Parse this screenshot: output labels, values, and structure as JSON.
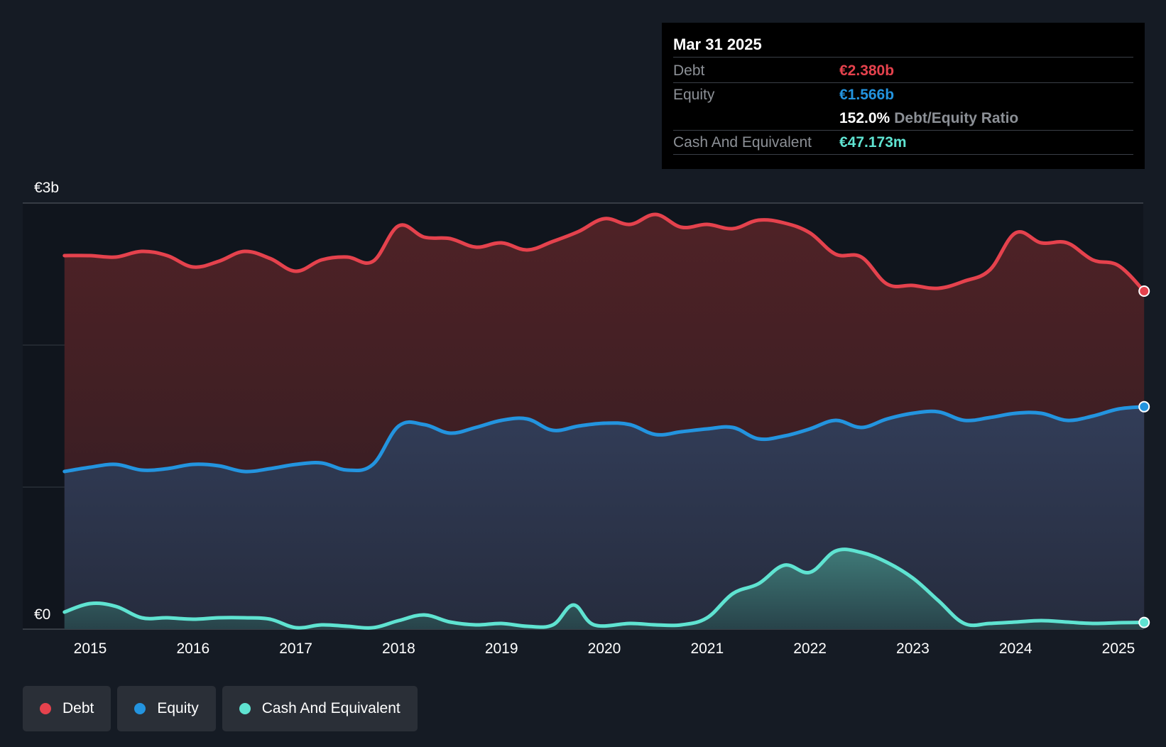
{
  "colors": {
    "background": "#151b24",
    "debt": "#e5424d",
    "equity": "#2394df",
    "cash": "#5fe3d1",
    "grid": "#3a4049"
  },
  "tooltip": {
    "date": "Mar 31 2025",
    "debt_label": "Debt",
    "debt_value": "€2.380b",
    "equity_label": "Equity",
    "equity_value": "€1.566b",
    "ratio_value": "152.0%",
    "ratio_label": "Debt/Equity Ratio",
    "cash_label": "Cash And Equivalent",
    "cash_value": "€47.173m"
  },
  "legend": [
    {
      "label": "Debt",
      "color": "#e5424d"
    },
    {
      "label": "Equity",
      "color": "#2394df"
    },
    {
      "label": "Cash And Equivalent",
      "color": "#5fe3d1"
    }
  ],
  "chart_data": {
    "type": "area",
    "title": "",
    "xlabel": "",
    "ylabel": "",
    "ylim": [
      0,
      3
    ],
    "y_unit": "€b",
    "y_tick_labels": [
      {
        "value": 3,
        "label": "€3b"
      },
      {
        "value": 0,
        "label": "€0"
      }
    ],
    "gridlines": [
      0,
      1,
      2,
      3
    ],
    "x_ticks": [
      {
        "value": 2015,
        "label": "2015"
      },
      {
        "value": 2016,
        "label": "2016"
      },
      {
        "value": 2017,
        "label": "2017"
      },
      {
        "value": 2018,
        "label": "2018"
      },
      {
        "value": 2019,
        "label": "2019"
      },
      {
        "value": 2020,
        "label": "2020"
      },
      {
        "value": 2021,
        "label": "2021"
      },
      {
        "value": 2022,
        "label": "2022"
      },
      {
        "value": 2023,
        "label": "2023"
      },
      {
        "value": 2024,
        "label": "2024"
      },
      {
        "value": 2025,
        "label": "2025"
      }
    ],
    "xlim": [
      2014.7,
      2025.3
    ],
    "series": [
      {
        "name": "Debt",
        "color": "#e5424d",
        "points": [
          [
            2014.75,
            2.63
          ],
          [
            2015.0,
            2.63
          ],
          [
            2015.25,
            2.62
          ],
          [
            2015.5,
            2.66
          ],
          [
            2015.75,
            2.63
          ],
          [
            2016.0,
            2.55
          ],
          [
            2016.25,
            2.59
          ],
          [
            2016.5,
            2.66
          ],
          [
            2016.75,
            2.61
          ],
          [
            2017.0,
            2.52
          ],
          [
            2017.25,
            2.6
          ],
          [
            2017.5,
            2.62
          ],
          [
            2017.75,
            2.59
          ],
          [
            2018.0,
            2.84
          ],
          [
            2018.25,
            2.76
          ],
          [
            2018.5,
            2.75
          ],
          [
            2018.75,
            2.69
          ],
          [
            2019.0,
            2.72
          ],
          [
            2019.25,
            2.67
          ],
          [
            2019.5,
            2.73
          ],
          [
            2019.75,
            2.8
          ],
          [
            2020.0,
            2.89
          ],
          [
            2020.25,
            2.85
          ],
          [
            2020.5,
            2.92
          ],
          [
            2020.75,
            2.83
          ],
          [
            2021.0,
            2.85
          ],
          [
            2021.25,
            2.82
          ],
          [
            2021.5,
            2.88
          ],
          [
            2021.75,
            2.86
          ],
          [
            2022.0,
            2.79
          ],
          [
            2022.25,
            2.64
          ],
          [
            2022.5,
            2.62
          ],
          [
            2022.75,
            2.43
          ],
          [
            2023.0,
            2.42
          ],
          [
            2023.25,
            2.4
          ],
          [
            2023.5,
            2.45
          ],
          [
            2023.75,
            2.53
          ],
          [
            2024.0,
            2.79
          ],
          [
            2024.25,
            2.72
          ],
          [
            2024.5,
            2.72
          ],
          [
            2024.75,
            2.6
          ],
          [
            2025.0,
            2.56
          ],
          [
            2025.25,
            2.38
          ]
        ]
      },
      {
        "name": "Equity",
        "color": "#2394df",
        "points": [
          [
            2014.75,
            1.11
          ],
          [
            2015.0,
            1.14
          ],
          [
            2015.25,
            1.16
          ],
          [
            2015.5,
            1.12
          ],
          [
            2015.75,
            1.13
          ],
          [
            2016.0,
            1.16
          ],
          [
            2016.25,
            1.15
          ],
          [
            2016.5,
            1.11
          ],
          [
            2016.75,
            1.13
          ],
          [
            2017.0,
            1.16
          ],
          [
            2017.25,
            1.17
          ],
          [
            2017.5,
            1.12
          ],
          [
            2017.75,
            1.16
          ],
          [
            2018.0,
            1.43
          ],
          [
            2018.25,
            1.44
          ],
          [
            2018.5,
            1.38
          ],
          [
            2018.75,
            1.42
          ],
          [
            2019.0,
            1.47
          ],
          [
            2019.25,
            1.48
          ],
          [
            2019.5,
            1.4
          ],
          [
            2019.75,
            1.43
          ],
          [
            2020.0,
            1.45
          ],
          [
            2020.25,
            1.44
          ],
          [
            2020.5,
            1.37
          ],
          [
            2020.75,
            1.39
          ],
          [
            2021.0,
            1.41
          ],
          [
            2021.25,
            1.42
          ],
          [
            2021.5,
            1.34
          ],
          [
            2021.75,
            1.36
          ],
          [
            2022.0,
            1.41
          ],
          [
            2022.25,
            1.47
          ],
          [
            2022.5,
            1.42
          ],
          [
            2022.75,
            1.48
          ],
          [
            2023.0,
            1.52
          ],
          [
            2023.25,
            1.53
          ],
          [
            2023.5,
            1.47
          ],
          [
            2023.75,
            1.49
          ],
          [
            2024.0,
            1.52
          ],
          [
            2024.25,
            1.52
          ],
          [
            2024.5,
            1.47
          ],
          [
            2024.75,
            1.5
          ],
          [
            2025.0,
            1.55
          ],
          [
            2025.25,
            1.566
          ]
        ]
      },
      {
        "name": "Cash And Equivalent",
        "color": "#5fe3d1",
        "points": [
          [
            2014.75,
            0.12
          ],
          [
            2015.0,
            0.18
          ],
          [
            2015.25,
            0.16
          ],
          [
            2015.5,
            0.08
          ],
          [
            2015.75,
            0.08
          ],
          [
            2016.0,
            0.07
          ],
          [
            2016.25,
            0.08
          ],
          [
            2016.5,
            0.08
          ],
          [
            2016.75,
            0.07
          ],
          [
            2017.0,
            0.01
          ],
          [
            2017.25,
            0.03
          ],
          [
            2017.5,
            0.02
          ],
          [
            2017.75,
            0.01
          ],
          [
            2018.0,
            0.06
          ],
          [
            2018.25,
            0.1
          ],
          [
            2018.5,
            0.05
          ],
          [
            2018.75,
            0.03
          ],
          [
            2019.0,
            0.04
          ],
          [
            2019.25,
            0.02
          ],
          [
            2019.5,
            0.03
          ],
          [
            2019.7,
            0.17
          ],
          [
            2019.9,
            0.03
          ],
          [
            2020.25,
            0.04
          ],
          [
            2020.5,
            0.03
          ],
          [
            2020.75,
            0.03
          ],
          [
            2021.0,
            0.08
          ],
          [
            2021.25,
            0.25
          ],
          [
            2021.5,
            0.32
          ],
          [
            2021.75,
            0.45
          ],
          [
            2022.0,
            0.4
          ],
          [
            2022.25,
            0.55
          ],
          [
            2022.5,
            0.54
          ],
          [
            2022.75,
            0.47
          ],
          [
            2023.0,
            0.36
          ],
          [
            2023.25,
            0.2
          ],
          [
            2023.5,
            0.04
          ],
          [
            2023.75,
            0.04
          ],
          [
            2024.0,
            0.05
          ],
          [
            2024.25,
            0.06
          ],
          [
            2024.5,
            0.05
          ],
          [
            2024.75,
            0.04
          ],
          [
            2025.0,
            0.045
          ],
          [
            2025.25,
            0.047
          ]
        ]
      }
    ]
  }
}
